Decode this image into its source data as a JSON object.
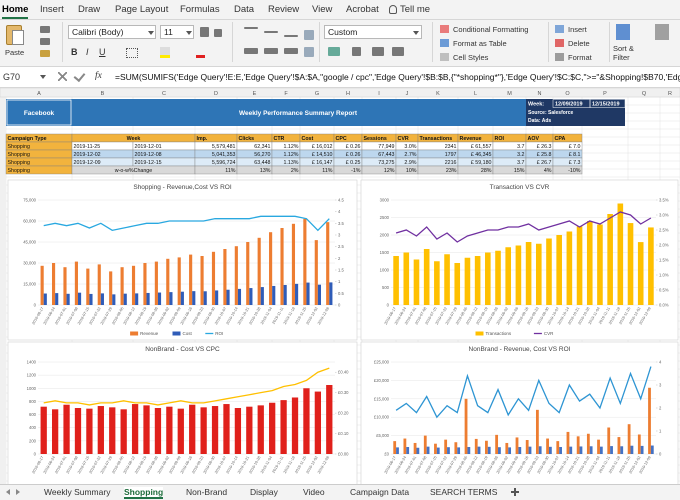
{
  "ribbon": {
    "tabs": [
      "Home",
      "Insert",
      "Draw",
      "Page Layout",
      "Formulas",
      "Data",
      "Review",
      "View",
      "Acrobat",
      "Tell me"
    ],
    "paste": "Paste",
    "font": "Calibri (Body)",
    "size": "11",
    "format_buttons": [
      "B",
      "I",
      "U"
    ],
    "number_format": "Custom",
    "styles": [
      "Conditional Formatting",
      "Format as Table",
      "Cell Styles"
    ],
    "cells": [
      "Insert",
      "Delete",
      "Format"
    ],
    "sort": "Sort & Filter"
  },
  "formula_bar": {
    "cell": "G70",
    "fx": "fx",
    "formula": "=SUM(SUMIFS('Edge Query'!E:E,'Edge Query'!$A:$A,\"google / cpc\",'Edge Query'!$B:$B,{\"*shopping*\"},'Edge Query'!$C:$C,\">=\"&Shopping!$B70,'Edge Query'!"
  },
  "columns": [
    "A",
    "B",
    "C",
    "D",
    "E",
    "F",
    "G",
    "H",
    "I",
    "J",
    "K",
    "L",
    "M",
    "N",
    "O",
    "P",
    "Q",
    "R"
  ],
  "report": {
    "brand": "Facebook",
    "title": "Weekly Performance Summary Report",
    "week_label": "Week:",
    "week_start": "12/09/2019",
    "week_end": "12/15/2019",
    "source": "Source: Salesforce",
    "data": "Data: Ads"
  },
  "table": {
    "header": [
      "Campaign Type",
      "Week",
      "Imp.",
      "Clicks",
      "CTR",
      "Cost",
      "CPC",
      "Sessions",
      "CVR",
      "Transactions",
      "Revenue",
      "ROI",
      "AOV",
      "CPA"
    ],
    "rows": [
      [
        "Shopping",
        "2019-11-25",
        "2019-12-01",
        "5,579,481",
        "62,341",
        "1.12%",
        "£ 16,012",
        "£ 0.26",
        "77,949",
        "3.0%",
        "2341",
        "£ 61,557",
        "3.7",
        "£ 26.3",
        "£ 7.0"
      ],
      [
        "Shopping",
        "2019-12-02",
        "2019-12-08",
        "5,041,353",
        "56,270",
        "1.12%",
        "£ 14,510",
        "£ 0.26",
        "67,443",
        "2.7%",
        "1797",
        "£ 46,345",
        "3.2",
        "£ 25.8",
        "£ 8.1"
      ],
      [
        "Shopping",
        "2019-12-09",
        "2019-12-15",
        "5,596,724",
        "63,448",
        "1.13%",
        "£ 16,147",
        "£ 0.25",
        "73,275",
        "2.9%",
        "2216",
        "£ 59,180",
        "3.7",
        "£ 26.7",
        "£ 7.3"
      ],
      [
        "Shopping",
        "w-o-w%Change",
        "11%",
        "13%",
        "2%",
        "11%",
        "-1%",
        "12%",
        "10%",
        "23%",
        "28%",
        "15%",
        "4%",
        "-10%"
      ]
    ]
  },
  "weeks": [
    "2019-06-17",
    "2019-06-24",
    "2019-07-01",
    "2019-07-08",
    "2019-07-15",
    "2019-07-22",
    "2019-07-29",
    "2019-08-05",
    "2019-08-12",
    "2019-08-19",
    "2019-08-26",
    "2019-09-02",
    "2019-09-09",
    "2019-09-16",
    "2019-09-23",
    "2019-09-30",
    "2019-10-07",
    "2019-10-14",
    "2019-10-21",
    "2019-10-28",
    "2019-11-04",
    "2019-11-11",
    "2019-11-18",
    "2019-11-25",
    "2019-12-02",
    "2019-12-09"
  ],
  "charts": [
    {
      "type": "bar-line",
      "title": "Shopping - Revenue,Cost VS ROI",
      "legend": true,
      "ylim": [
        0,
        75000
      ],
      "yticks": [
        {
          "value": 0,
          "label": "0"
        },
        {
          "value": 15000,
          "label": "15,000"
        },
        {
          "value": 30000,
          "label": "30,000"
        },
        {
          "value": 45000,
          "label": "45,000"
        },
        {
          "value": 60000,
          "label": "60,000"
        },
        {
          "value": 75000,
          "label": "75,000"
        }
      ],
      "y2lim": [
        0,
        4.5
      ],
      "y2ticks": [
        0,
        0.5,
        1,
        1.5,
        2,
        2.5,
        3,
        3.5,
        4,
        4.5
      ],
      "series": [
        {
          "name": "Revenue",
          "mark": "bar",
          "color": "#ed7d31",
          "values": [
            28000,
            30000,
            27000,
            31000,
            26000,
            29000,
            24000,
            27000,
            28000,
            30000,
            31000,
            33000,
            34000,
            36000,
            35000,
            38000,
            40000,
            42000,
            45000,
            48000,
            52000,
            55000,
            58000,
            61557,
            46345,
            59180
          ]
        },
        {
          "name": "Cost",
          "mark": "bar",
          "color": "#2f5cb8",
          "values": [
            8200,
            8500,
            8000,
            8800,
            7900,
            8300,
            7600,
            8100,
            8300,
            8600,
            8900,
            9200,
            9500,
            9900,
            9800,
            10400,
            10900,
            11500,
            12100,
            12800,
            13600,
            14300,
            15100,
            16012,
            14510,
            16147
          ]
        },
        {
          "name": "ROI",
          "mark": "line",
          "axis": "y2",
          "color": "#29a8e0",
          "values": [
            3.4,
            3.5,
            3.4,
            3.5,
            3.3,
            3.5,
            3.2,
            3.3,
            3.4,
            3.5,
            3.5,
            3.6,
            3.6,
            3.6,
            3.6,
            3.7,
            3.7,
            3.7,
            3.7,
            3.8,
            3.8,
            3.8,
            3.8,
            3.7,
            3.2,
            3.7
          ]
        }
      ]
    },
    {
      "type": "bar-line",
      "title": "Transaction VS CVR",
      "legend": true,
      "ylim": [
        0,
        3000
      ],
      "yticks": [
        0,
        500,
        1000,
        1500,
        2000,
        2500,
        3000
      ],
      "y2lim": [
        0,
        3.5
      ],
      "y2ticks": [
        {
          "value": 0,
          "label": "0.0%"
        },
        {
          "value": 0.5,
          "label": "0.5%"
        },
        {
          "value": 1,
          "label": "1.0%"
        },
        {
          "value": 1.5,
          "label": "1.5%"
        },
        {
          "value": 2,
          "label": "2.0%"
        },
        {
          "value": 2.5,
          "label": "2.5%"
        },
        {
          "value": 3,
          "label": "3.0%"
        },
        {
          "value": 3.5,
          "label": "3.5%"
        }
      ],
      "series": [
        {
          "name": "Transactions",
          "mark": "bar",
          "color": "#ffc000",
          "values": [
            1400,
            1500,
            1300,
            1600,
            1250,
            1450,
            1200,
            1350,
            1400,
            1500,
            1550,
            1650,
            1700,
            1800,
            1750,
            1900,
            2000,
            2100,
            2250,
            2400,
            2300,
            2600,
            2900,
            2341,
            1797,
            2216
          ]
        },
        {
          "name": "CVR",
          "mark": "line",
          "axis": "y2",
          "color": "#7030a0",
          "values": [
            2.4,
            2.5,
            2.3,
            2.6,
            2.2,
            2.4,
            2.1,
            2.3,
            2.4,
            2.5,
            2.5,
            2.6,
            2.6,
            2.7,
            2.5,
            2.6,
            2.7,
            2.8,
            2.6,
            2.8,
            2.7,
            2.9,
            3.1,
            3.0,
            2.7,
            2.9
          ]
        }
      ]
    },
    {
      "type": "bar-line",
      "title": "NonBrand - Cost VS CPC",
      "legend": false,
      "ylim": [
        0,
        1400
      ],
      "yticks": [
        0,
        200,
        400,
        600,
        800,
        1000,
        1200,
        1400
      ],
      "y2lim": [
        0,
        0.45
      ],
      "y2ticks": [
        {
          "value": 0,
          "label": "£0.00"
        },
        {
          "value": 0.1,
          "label": "£0.10"
        },
        {
          "value": 0.2,
          "label": "£0.20"
        },
        {
          "value": 0.3,
          "label": "£0.30"
        },
        {
          "value": 0.4,
          "label": "£0.40"
        }
      ],
      "series": [
        {
          "name": "Cost",
          "mark": "bar",
          "color": "#e0201b",
          "values": [
            720,
            680,
            750,
            700,
            690,
            730,
            710,
            680,
            760,
            740,
            700,
            720,
            690,
            750,
            710,
            730,
            760,
            700,
            720,
            740,
            780,
            820,
            860,
            1000,
            950,
            1050
          ]
        },
        {
          "name": "CPC",
          "mark": "line",
          "axis": "y2",
          "color": "#ffc000",
          "values": [
            0.25,
            0.26,
            0.25,
            0.25,
            0.24,
            0.25,
            0.25,
            0.26,
            0.25,
            0.25,
            0.24,
            0.25,
            0.26,
            0.25,
            0.25,
            0.26,
            0.27,
            0.28,
            0.29,
            0.3,
            0.31,
            0.33,
            0.34,
            0.36,
            0.4,
            0.42
          ]
        }
      ]
    },
    {
      "type": "bar-line",
      "title": "NonBrand - Revenue, Cost VS ROI",
      "legend": false,
      "ylim": [
        0,
        25000
      ],
      "yticks": [
        {
          "value": 0,
          "label": "£0"
        },
        {
          "value": 5000,
          "label": "£5,000"
        },
        {
          "value": 10000,
          "label": "£10,000"
        },
        {
          "value": 15000,
          "label": "£15,000"
        },
        {
          "value": 20000,
          "label": "£20,000"
        },
        {
          "value": 25000,
          "label": "£25,000"
        }
      ],
      "y2lim": [
        0,
        4
      ],
      "y2ticks": [
        0,
        1,
        2,
        3,
        4
      ],
      "series": [
        {
          "name": "Revenue",
          "mark": "bar",
          "color": "#ed7d31",
          "values": [
            3500,
            4200,
            3000,
            5000,
            2800,
            3900,
            3200,
            15000,
            4100,
            3600,
            5200,
            3000,
            4500,
            3800,
            12000,
            4200,
            3500,
            6000,
            4800,
            5500,
            3900,
            7200,
            4600,
            8100,
            5300,
            18000
          ]
        },
        {
          "name": "Cost",
          "mark": "bar",
          "color": "#4472c4",
          "values": [
            1800,
            1900,
            1700,
            2000,
            1750,
            1850,
            1800,
            1900,
            2000,
            1950,
            1850,
            1800,
            1900,
            2000,
            2100,
            1950,
            1900,
            2000,
            2050,
            2100,
            2000,
            2150,
            2100,
            2250,
            2200,
            2300
          ]
        },
        {
          "name": "ROI",
          "mark": "line",
          "axis": "y2",
          "color": "#2e95d3",
          "values": [
            1.9,
            2.2,
            1.8,
            2.5,
            1.6,
            2.1,
            1.8,
            3.4,
            2.1,
            1.8,
            2.8,
            1.7,
            2.4,
            1.9,
            3.2,
            2.2,
            1.8,
            3.0,
            2.3,
            2.6,
            2.0,
            3.3,
            2.2,
            3.5,
            2.4,
            3.8
          ]
        }
      ]
    }
  ],
  "sheet_tabs": [
    "Weekly Summary",
    "Shopping",
    "Non-Brand",
    "Display",
    "Video",
    "Campaign Data",
    "SEARCH TERMS"
  ],
  "active_tab": 1
}
